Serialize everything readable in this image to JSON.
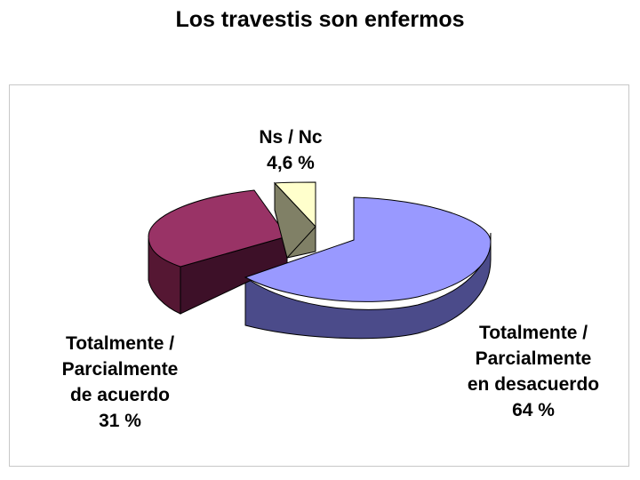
{
  "chart_data": {
    "type": "pie",
    "title": "Los travestis son enfermos",
    "slices": [
      {
        "label_lines": [
          "Totalmente /",
          "Parcialmente",
          "en desacuerdo"
        ],
        "value_text": "64 %",
        "value": 64,
        "color": "#9999ff"
      },
      {
        "label_lines": [
          "Totalmente /",
          "Parcialmente",
          "de acuerdo"
        ],
        "value_text": "31 %",
        "value": 31,
        "color": "#993366"
      },
      {
        "label_lines": [
          "Ns / Nc"
        ],
        "value_text": "4,6 %",
        "value": 4.6,
        "color": "#ffffcc"
      }
    ],
    "style": "3d-exploded"
  }
}
